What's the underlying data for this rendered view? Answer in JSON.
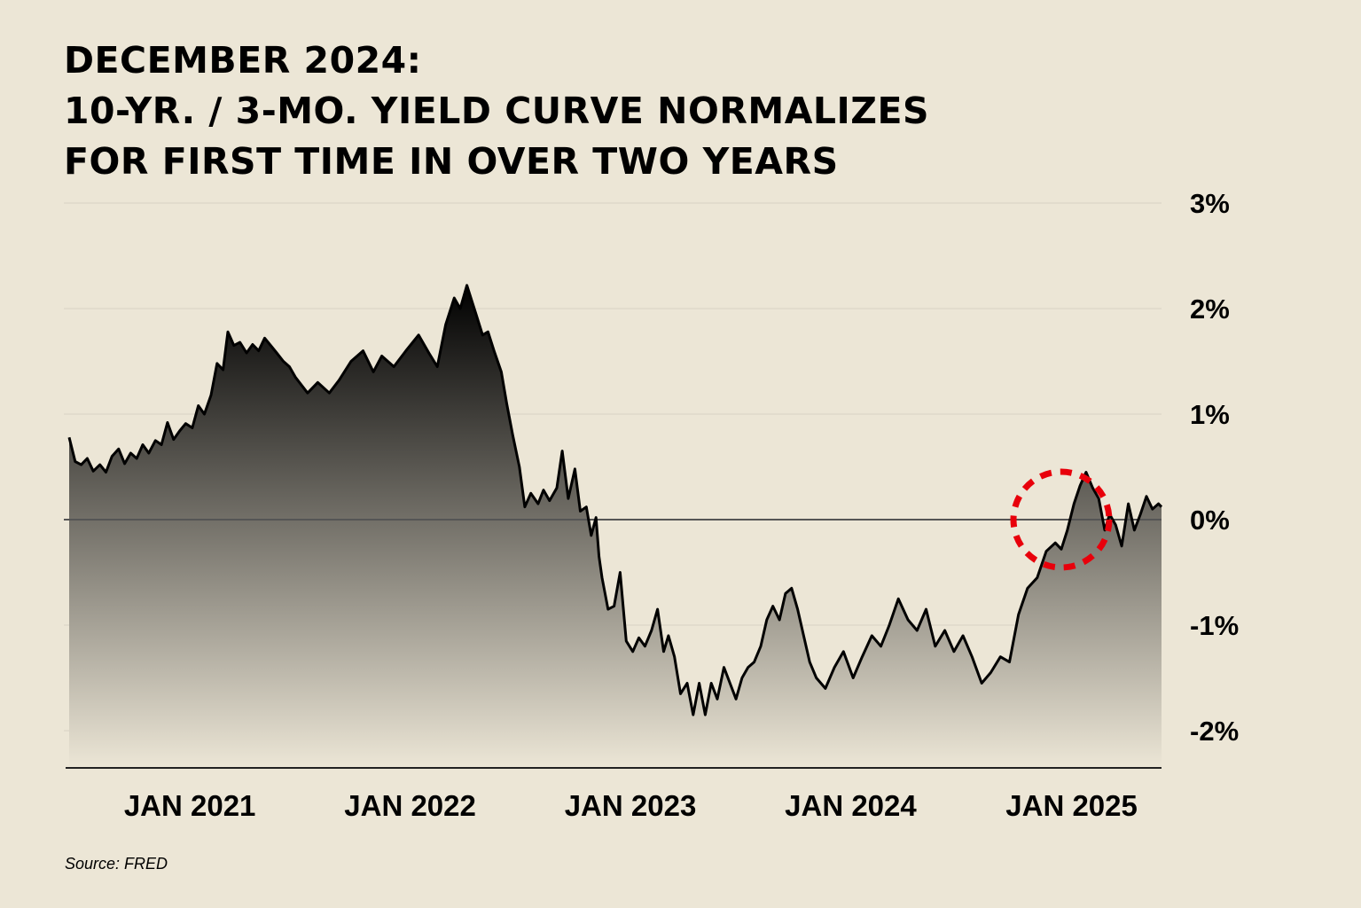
{
  "title_lines": [
    "DECEMBER 2024:",
    "10-YR. / 3-MO. YIELD CURVE NORMALIZES",
    "FOR FIRST TIME IN OVER TWO YEARS"
  ],
  "source": "Source: FRED",
  "colors": {
    "background": "#ece6d6",
    "line": "#000000",
    "area_top": "#000000",
    "area_bottom": "#ece6d6",
    "zero_line": "#555555",
    "gridline": "#d9d3c4",
    "highlight_circle": "#e8000b"
  },
  "chart_data": {
    "type": "area",
    "title": "10-YR. / 3-MO. YIELD CURVE NORMALIZES FOR FIRST TIME IN OVER TWO YEARS",
    "y_unit": "%",
    "y_tick_labels": [
      "3%",
      "2%",
      "1%",
      "0%",
      "-1%",
      "-2%"
    ],
    "y_ticks": [
      3,
      2,
      1,
      0,
      -1,
      -2
    ],
    "x_tick_labels": [
      "JAN 2021",
      "JAN 2022",
      "JAN 2023",
      "JAN 2024",
      "JAN 2025"
    ],
    "x_ticks": [
      "2021-01-01",
      "2022-01-01",
      "2023-01-01",
      "2024-01-01",
      "2025-01-01"
    ],
    "xlim": [
      "2020-06-15",
      "2025-05-30"
    ],
    "ylim": [
      -2.35,
      3.0
    ],
    "grid": true,
    "legend": "none",
    "annotations": [
      {
        "type": "dashed-circle",
        "color": "red",
        "center_x": "2024-12-15",
        "center_y": 0.0
      }
    ],
    "series": [
      {
        "x": [
          "2020-06-15",
          "2020-06-25",
          "2020-07-05",
          "2020-07-15",
          "2020-07-25",
          "2020-08-05",
          "2020-08-15",
          "2020-08-25",
          "2020-09-05",
          "2020-09-15",
          "2020-09-25",
          "2020-10-05",
          "2020-10-15",
          "2020-10-25",
          "2020-11-05",
          "2020-11-15",
          "2020-11-25",
          "2020-12-05",
          "2020-12-15",
          "2020-12-25",
          "2021-01-05",
          "2021-01-15",
          "2021-01-25",
          "2021-02-05",
          "2021-02-15",
          "2021-02-25",
          "2021-03-05",
          "2021-03-15",
          "2021-03-25",
          "2021-04-05",
          "2021-04-15",
          "2021-04-25",
          "2021-05-05",
          "2021-05-15",
          "2021-05-25",
          "2021-06-05",
          "2021-06-15",
          "2021-06-25",
          "2021-07-15",
          "2021-08-01",
          "2021-08-20",
          "2021-09-05",
          "2021-09-25",
          "2021-10-15",
          "2021-11-01",
          "2021-11-15",
          "2021-12-05",
          "2021-12-25",
          "2022-01-15",
          "2022-02-01",
          "2022-02-15",
          "2022-03-01",
          "2022-03-15",
          "2022-03-25",
          "2022-04-05",
          "2022-04-20",
          "2022-05-01",
          "2022-05-10",
          "2022-05-20",
          "2022-06-01",
          "2022-06-10",
          "2022-06-20",
          "2022-07-01",
          "2022-07-10",
          "2022-07-20",
          "2022-08-01",
          "2022-08-10",
          "2022-08-20",
          "2022-09-01",
          "2022-09-10",
          "2022-09-20",
          "2022-10-01",
          "2022-10-10",
          "2022-10-20",
          "2022-10-28",
          "2022-11-05",
          "2022-11-10",
          "2022-11-15",
          "2022-11-25",
          "2022-12-05",
          "2022-12-15",
          "2022-12-25",
          "2023-01-05",
          "2023-01-15",
          "2023-01-25",
          "2023-02-05",
          "2023-02-15",
          "2023-02-25",
          "2023-03-05",
          "2023-03-15",
          "2023-03-25",
          "2023-04-05",
          "2023-04-15",
          "2023-04-25",
          "2023-05-05",
          "2023-05-15",
          "2023-05-25",
          "2023-06-05",
          "2023-06-15",
          "2023-06-25",
          "2023-07-05",
          "2023-07-15",
          "2023-07-25",
          "2023-08-05",
          "2023-08-15",
          "2023-08-25",
          "2023-09-05",
          "2023-09-15",
          "2023-09-25",
          "2023-10-05",
          "2023-10-15",
          "2023-10-25",
          "2023-11-05",
          "2023-11-20",
          "2023-12-05",
          "2023-12-20",
          "2024-01-05",
          "2024-01-20",
          "2024-02-05",
          "2024-02-20",
          "2024-03-05",
          "2024-03-20",
          "2024-04-05",
          "2024-04-20",
          "2024-05-05",
          "2024-05-20",
          "2024-06-05",
          "2024-06-20",
          "2024-07-05",
          "2024-07-20",
          "2024-08-05",
          "2024-08-20",
          "2024-09-05",
          "2024-09-20",
          "2024-10-05",
          "2024-10-20",
          "2024-11-05",
          "2024-11-20",
          "2024-12-05",
          "2024-12-15",
          "2024-12-25",
          "2025-01-05",
          "2025-01-15",
          "2025-01-25",
          "2025-02-05",
          "2025-02-15",
          "2025-02-25",
          "2025-03-05",
          "2025-03-15",
          "2025-03-25",
          "2025-04-05",
          "2025-04-15",
          "2025-04-25",
          "2025-05-05",
          "2025-05-15",
          "2025-05-25",
          "2025-05-30"
        ],
        "values": [
          0.78,
          0.55,
          0.52,
          0.58,
          0.46,
          0.52,
          0.45,
          0.6,
          0.67,
          0.53,
          0.63,
          0.58,
          0.71,
          0.63,
          0.75,
          0.71,
          0.92,
          0.76,
          0.84,
          0.91,
          0.87,
          1.08,
          1.0,
          1.18,
          1.48,
          1.42,
          1.78,
          1.65,
          1.68,
          1.58,
          1.66,
          1.6,
          1.72,
          1.65,
          1.58,
          1.5,
          1.45,
          1.35,
          1.2,
          1.3,
          1.2,
          1.32,
          1.5,
          1.6,
          1.4,
          1.55,
          1.45,
          1.6,
          1.75,
          1.58,
          1.45,
          1.85,
          2.1,
          2.0,
          2.22,
          1.95,
          1.75,
          1.78,
          1.6,
          1.4,
          1.1,
          0.8,
          0.5,
          0.12,
          0.25,
          0.15,
          0.28,
          0.18,
          0.3,
          0.65,
          0.2,
          0.48,
          0.08,
          0.12,
          -0.15,
          0.02,
          -0.35,
          -0.55,
          -0.85,
          -0.82,
          -0.5,
          -1.15,
          -1.25,
          -1.12,
          -1.2,
          -1.05,
          -0.85,
          -1.25,
          -1.1,
          -1.3,
          -1.65,
          -1.55,
          -1.85,
          -1.55,
          -1.85,
          -1.55,
          -1.7,
          -1.4,
          -1.55,
          -1.7,
          -1.5,
          -1.4,
          -1.35,
          -1.2,
          -0.95,
          -0.82,
          -0.95,
          -0.7,
          -0.65,
          -0.85,
          -1.1,
          -1.35,
          -1.5,
          -1.6,
          -1.4,
          -1.25,
          -1.5,
          -1.3,
          -1.1,
          -1.2,
          -1.0,
          -0.75,
          -0.95,
          -1.05,
          -0.85,
          -1.2,
          -1.05,
          -1.25,
          -1.1,
          -1.3,
          -1.55,
          -1.45,
          -1.3,
          -1.35,
          -0.9,
          -0.65,
          -0.55,
          -0.3,
          -0.22,
          -0.28,
          -0.1,
          0.15,
          0.32,
          0.45,
          0.3,
          0.2,
          -0.1,
          0.05,
          -0.05,
          -0.25,
          0.15,
          -0.1,
          0.05,
          0.22,
          0.1,
          0.15,
          0.12
        ]
      }
    ]
  }
}
